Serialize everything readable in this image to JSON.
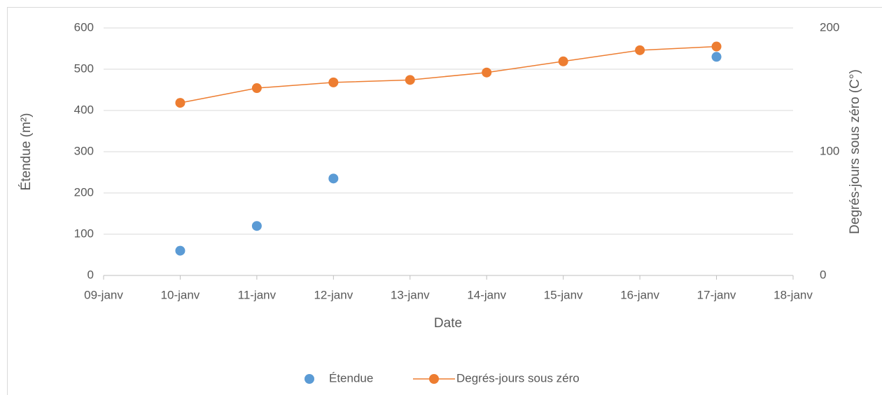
{
  "chart_data": {
    "type": "line",
    "categories": [
      "09-janv",
      "10-janv",
      "11-janv",
      "12-janv",
      "13-janv",
      "14-janv",
      "15-janv",
      "16-janv",
      "17-janv",
      "18-janv"
    ],
    "series": [
      {
        "name": "Étendue",
        "type": "scatter",
        "color": "#5b9bd5",
        "values": [
          null,
          60,
          120,
          235,
          null,
          null,
          null,
          null,
          530,
          null
        ]
      },
      {
        "name": "Degrés-jours sous zéro",
        "type": "line",
        "axis": "y2",
        "color": "#ed7d31",
        "values": [
          null,
          139.5,
          151.4,
          156,
          158,
          164,
          173,
          182,
          185,
          null
        ]
      }
    ],
    "ylabel": "Étendue (m²)",
    "y2label": "Degrés-jours sous zéro (C°)",
    "xlabel": "Date",
    "ylim": [
      0,
      600
    ],
    "yticks": [
      0,
      100,
      200,
      300,
      400,
      500,
      600
    ],
    "y2lim": [
      0,
      200
    ],
    "y2ticks": [
      0,
      100,
      200
    ],
    "grid": true,
    "legend": "bottom"
  }
}
